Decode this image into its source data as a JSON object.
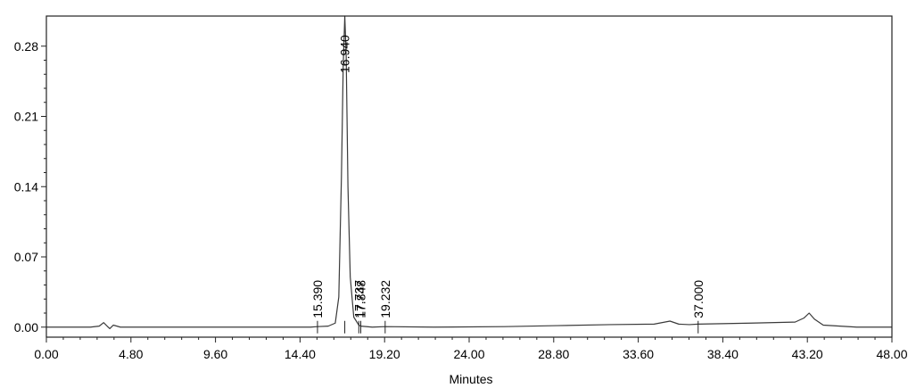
{
  "chart_data": {
    "type": "line",
    "title": "",
    "xlabel": "Minutes",
    "ylabel": "",
    "xlim": [
      0.0,
      48.0
    ],
    "ylim": [
      -0.01,
      0.31
    ],
    "x_ticks": [
      "0.00",
      "4.80",
      "9.60",
      "14.40",
      "19.20",
      "24.00",
      "28.80",
      "33.60",
      "38.40",
      "43.20",
      "48.00"
    ],
    "y_ticks": [
      "0.00",
      "0.07",
      "0.14",
      "0.21",
      "0.28"
    ],
    "grid": false,
    "colors": {
      "trace": "#3a3a3a",
      "frame": "#222222",
      "marker": "#222222"
    },
    "peak_labels": [
      {
        "time": 15.39,
        "text": "15.390"
      },
      {
        "time": 16.94,
        "text": "16.940"
      },
      {
        "time": 17.737,
        "text": "17.737"
      },
      {
        "time": 17.848,
        "text": "17.848"
      },
      {
        "time": 19.232,
        "text": "19.232"
      },
      {
        "time": 37.0,
        "text": "37.000"
      }
    ],
    "series": [
      {
        "values": [
          [
            0.0,
            0.0
          ],
          [
            2.5,
            0.0
          ],
          [
            3.0,
            0.001
          ],
          [
            3.25,
            0.0045
          ],
          [
            3.45,
            0.001
          ],
          [
            3.6,
            -0.0015
          ],
          [
            3.8,
            0.002
          ],
          [
            4.2,
            0.0
          ],
          [
            7.0,
            0.0
          ],
          [
            12.0,
            0.0
          ],
          [
            15.0,
            0.0
          ],
          [
            15.39,
            0.0005
          ],
          [
            16.0,
            0.001
          ],
          [
            16.4,
            0.004
          ],
          [
            16.6,
            0.03
          ],
          [
            16.75,
            0.15
          ],
          [
            16.85,
            0.26
          ],
          [
            16.94,
            0.31
          ],
          [
            17.02,
            0.27
          ],
          [
            17.12,
            0.14
          ],
          [
            17.25,
            0.05
          ],
          [
            17.45,
            0.01
          ],
          [
            17.737,
            0.002
          ],
          [
            17.848,
            0.001
          ],
          [
            18.5,
            0.0
          ],
          [
            19.232,
            0.0005
          ],
          [
            22.0,
            0.0
          ],
          [
            26.0,
            0.0005
          ],
          [
            29.0,
            0.0015
          ],
          [
            32.0,
            0.0025
          ],
          [
            34.5,
            0.003
          ],
          [
            35.4,
            0.006
          ],
          [
            35.9,
            0.003
          ],
          [
            36.5,
            0.0025
          ],
          [
            37.0,
            0.003
          ],
          [
            40.0,
            0.004
          ],
          [
            42.5,
            0.005
          ],
          [
            43.0,
            0.009
          ],
          [
            43.3,
            0.014
          ],
          [
            43.6,
            0.008
          ],
          [
            44.1,
            0.002
          ],
          [
            46.0,
            0.0
          ],
          [
            48.0,
            0.0
          ]
        ]
      }
    ]
  }
}
